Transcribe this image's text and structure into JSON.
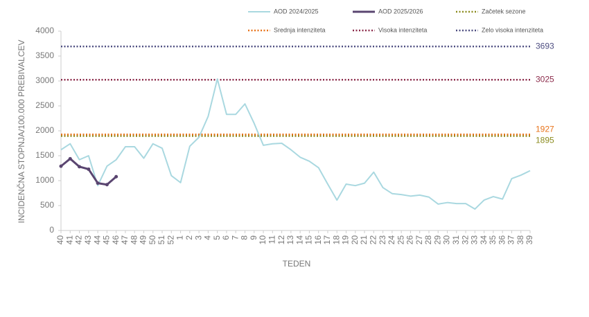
{
  "chart_data": {
    "type": "line",
    "x_label": "TEDEN",
    "y_label": "INCIDENČNA STOPNJA/100.000 PREBIVALCEV",
    "categories": [
      "40",
      "41",
      "42",
      "43",
      "44",
      "45",
      "46",
      "47",
      "48",
      "49",
      "50",
      "51",
      "52",
      "1",
      "2",
      "3",
      "4",
      "5",
      "6",
      "7",
      "8",
      "9",
      "10",
      "11",
      "12",
      "13",
      "14",
      "15",
      "16",
      "17",
      "18",
      "19",
      "20",
      "21",
      "22",
      "23",
      "24",
      "25",
      "26",
      "27",
      "28",
      "29",
      "30",
      "31",
      "32",
      "33",
      "34",
      "35",
      "36",
      "37",
      "38",
      "39"
    ],
    "series": [
      {
        "name": "AOD 2024/2025",
        "color": "#a9d8e0",
        "values": [
          1620,
          1740,
          1420,
          1500,
          900,
          1290,
          1420,
          1680,
          1680,
          1450,
          1740,
          1650,
          1100,
          960,
          1690,
          1870,
          2290,
          3040,
          2330,
          2330,
          2540,
          2150,
          1710,
          1740,
          1750,
          1620,
          1470,
          1390,
          1260,
          930,
          610,
          930,
          900,
          950,
          1170,
          860,
          740,
          720,
          690,
          710,
          670,
          530,
          560,
          540,
          540,
          430,
          610,
          680,
          630,
          1040,
          1110,
          1200
        ]
      },
      {
        "name": "AOD 2025/2026",
        "color": "#5a4570",
        "values": [
          1290,
          1440,
          1280,
          1230,
          950,
          920,
          1080,
          null,
          null,
          null,
          null,
          null,
          null,
          null,
          null,
          null,
          null,
          null,
          null,
          null,
          null,
          null,
          null,
          null,
          null,
          null,
          null,
          null,
          null,
          null,
          null,
          null,
          null,
          null,
          null,
          null,
          null,
          null,
          null,
          null,
          null,
          null,
          null,
          null,
          null,
          null,
          null,
          null,
          null,
          null,
          null,
          null
        ]
      }
    ],
    "thresholds": [
      {
        "name": "Začetek sezone",
        "color": "#8b8b1e",
        "value": 1895
      },
      {
        "name": "Srednja intenziteta",
        "color": "#e8731a",
        "value": 1927
      },
      {
        "name": "Visoka intenziteta",
        "color": "#8b2a4a",
        "value": 3025
      },
      {
        "name": "Zelo visoka intenziteta",
        "color": "#4d4d80",
        "value": 3693
      }
    ],
    "ylim": [
      0,
      4000
    ],
    "yticks": [
      0,
      500,
      1000,
      1500,
      2000,
      2500,
      3000,
      3500,
      4000
    ]
  }
}
